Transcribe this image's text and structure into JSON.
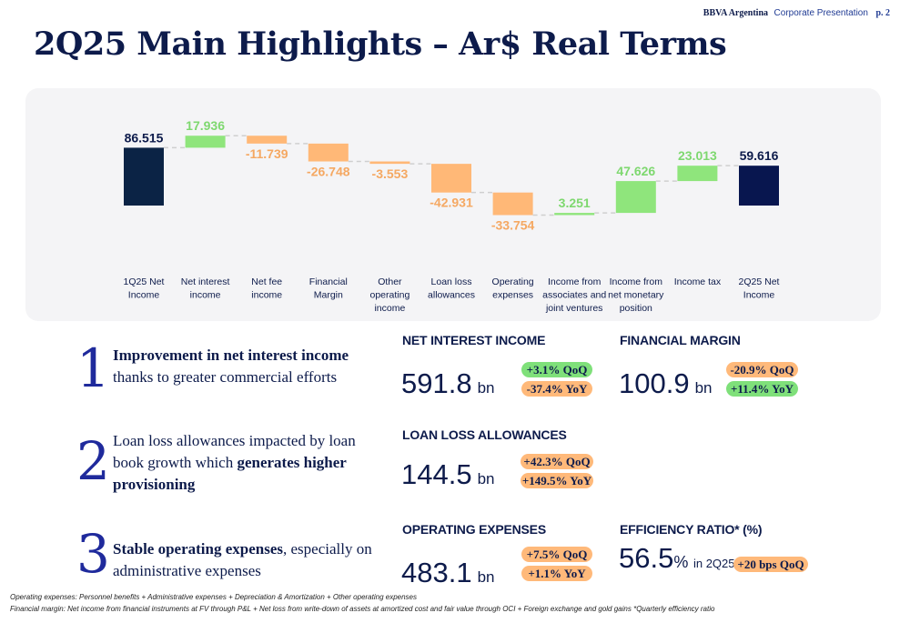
{
  "header": {
    "brand": "BBVA Argentina",
    "doc": "Corporate Presentation",
    "page": "p. 2"
  },
  "title": "2Q25 Main Highlights – Ar$ Real Terms",
  "chart_data": {
    "type": "waterfall",
    "categories": [
      "1Q25 Net Income",
      "Net interest income",
      "Net fee income",
      "Financial Margin",
      "Other operating income",
      "Loan loss allowances",
      "Operating expenses",
      "Income from associates and joint ventures",
      "Income from net monetary position",
      "Income tax",
      "2Q25 Net Income"
    ],
    "category_lines": [
      [
        "1Q25 Net",
        "Income"
      ],
      [
        "Net interest",
        "income"
      ],
      [
        "Net fee",
        "income"
      ],
      [
        "Financial",
        "Margin"
      ],
      [
        "Other",
        "operating",
        "income"
      ],
      [
        "Loan loss",
        "allowances"
      ],
      [
        "Operating",
        "expenses"
      ],
      [
        "Income from",
        "associates and",
        "joint ventures"
      ],
      [
        "Income from",
        "net monetary",
        "position"
      ],
      [
        "Income tax"
      ],
      [
        "2Q25 Net",
        "Income"
      ]
    ],
    "values": [
      86.515,
      17.936,
      -11.739,
      -26.748,
      -3.553,
      -42.931,
      -33.754,
      3.251,
      47.626,
      23.013,
      59.616
    ],
    "labels": [
      "86.515",
      "17.936",
      "-11.739",
      "-26.748",
      "-3.553",
      "-42.931",
      "-33.754",
      "3.251",
      "47.626",
      "23.013",
      "59.616"
    ],
    "kinds": [
      "total",
      "delta",
      "delta",
      "delta",
      "delta",
      "delta",
      "delta",
      "delta",
      "delta",
      "delta",
      "total"
    ],
    "ylim": [
      -60,
      160
    ],
    "colors": {
      "start_total": "#0b2345",
      "end_total": "#08164f",
      "increase": "#8fe57c",
      "decrease": "#ffb877",
      "connector": "#cfcfcf"
    }
  },
  "highlights": [
    {
      "num": "1"
    },
    {
      "num": "2"
    },
    {
      "num": "3"
    }
  ],
  "kpis": {
    "nii": {
      "label": "NET INTEREST INCOME",
      "value": "591.8",
      "unit": "bn",
      "qoq": "+3.1% QoQ",
      "yoy": "-37.4% YoY"
    },
    "fm": {
      "label": "FINANCIAL MARGIN",
      "value": "100.9",
      "unit": "bn",
      "qoq": "-20.9% QoQ",
      "yoy": "+11.4% YoY"
    },
    "lla": {
      "label": "LOAN LOSS ALLOWANCES",
      "value": "144.5",
      "unit": "bn",
      "qoq": "+42.3% QoQ",
      "yoy": "+149.5% YoY"
    },
    "opex": {
      "label": "OPERATING EXPENSES",
      "value": "483.1",
      "unit": "bn",
      "qoq": "+7.5% QoQ",
      "yoy": "+1.1% YoY"
    },
    "eff": {
      "label": "EFFICIENCY RATIO* (%)",
      "value": "56.5",
      "unit": "%",
      "period": " in 2Q25",
      "bps": "+20 bps QoQ"
    }
  },
  "footnotes": [
    "Operating expenses: Personnel benefits + Administrative expenses + Depreciation & Amortization + Other operating expenses",
    "Financial margin: Net income from financial instruments at FV through P&L + Net loss from write-down of assets at amortized cost and fair value through OCI + Foreign exchange and gold gains *Quarterly efficiency ratio"
  ]
}
